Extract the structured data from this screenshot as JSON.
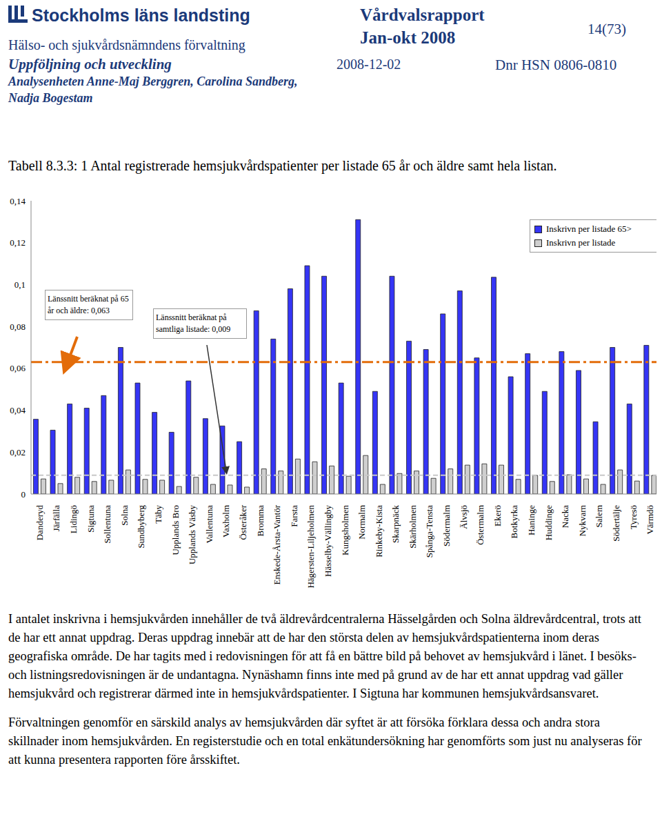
{
  "header": {
    "logo": "Stockholms läns landsting",
    "department": "Hälso- och sjukvårdsnämndens förvaltning",
    "unit": "Uppföljning och utveckling",
    "authors": "Analysenheten Anne-Maj Berggren, Carolina Sandberg, Nadja Bogestam",
    "report": "Vårdvalsrapport",
    "period": "Jan-okt 2008",
    "date": "2008-12-02",
    "page": "14(73)",
    "dnr": "Dnr HSN 0806-0810"
  },
  "caption": "Tabell 8.3.3: 1 Antal registrerade hemsjukvårdspatienter per listade 65 år och äldre samt hela listan.",
  "chart_data": {
    "type": "bar",
    "categories": [
      "Danderyd",
      "Järfälla",
      "Lidingö",
      "Sigtuna",
      "Sollentuna",
      "Solna",
      "Sundbyberg",
      "Täby",
      "Upplands Bro",
      "Upplands Väsby",
      "Vallentuna",
      "Vaxholm",
      "Österåker",
      "Bromma",
      "Enskede-Årsta-Vantör",
      "Farsta",
      "Hägersten-Liljeholmen",
      "Hässelby-Vällingby",
      "Kungsholmen",
      "Normalm",
      "Rinkeby-Kista",
      "Skarpnäck",
      "Skärholmen",
      "Spånga-Tensta",
      "Södermalm",
      "Älvsjö",
      "Östermalm",
      "Ekerö",
      "Botkyrka",
      "Haninge",
      "Huddinge",
      "Nacka",
      "Nykvarn",
      "Salem",
      "Södertälje",
      "Tyresö",
      "Värmdö"
    ],
    "series": [
      {
        "name": "Inskrivn per listade 65>",
        "color": "#3535f5",
        "values": [
          0.0357,
          0.0305,
          0.043,
          0.041,
          0.047,
          0.07,
          0.053,
          0.039,
          0.0295,
          0.054,
          0.036,
          0.0325,
          0.025,
          0.0875,
          0.074,
          0.098,
          0.109,
          0.104,
          0.053,
          0.131,
          0.049,
          0.104,
          0.073,
          0.069,
          0.086,
          0.097,
          0.065,
          0.1035,
          0.056,
          0.067,
          0.049,
          0.068,
          0.059,
          0.0345,
          0.07,
          0.043,
          0.071
        ]
      },
      {
        "name": "Inskrivn per listade",
        "color": "#cfcfcf",
        "values": [
          0.0072,
          0.005,
          0.008,
          0.006,
          0.0066,
          0.0115,
          0.007,
          0.0066,
          0.0036,
          0.008,
          0.0046,
          0.0043,
          0.0033,
          0.012,
          0.011,
          0.0167,
          0.0154,
          0.0134,
          0.0085,
          0.0184,
          0.0046,
          0.0098,
          0.011,
          0.0075,
          0.012,
          0.0138,
          0.0144,
          0.0138,
          0.007,
          0.0089,
          0.006,
          0.0092,
          0.0072,
          0.0046,
          0.0115,
          0.0062,
          0.0089
        ]
      }
    ],
    "ylim": [
      0,
      0.14
    ],
    "yticks": [
      0,
      {
        "value": 0.02,
        "label": "0,02"
      },
      {
        "value": 0.04,
        "label": "0,04"
      },
      {
        "value": 0.06,
        "label": "0,06"
      },
      {
        "value": 0.08,
        "label": "0,08"
      },
      {
        "value": 0.1,
        "label": "0,1"
      },
      {
        "value": 0.12,
        "label": "0,12"
      },
      {
        "value": 0.14,
        "label": "0,14"
      }
    ],
    "grid": false,
    "legend": "top-right",
    "annotations": [
      {
        "value": 0.063,
        "text": "Länssnitt beräknat på 65 år och äldre: 0,063",
        "color": "#e36c09",
        "line_style": "dashdot"
      },
      {
        "value": 0.009,
        "text": "Länssnitt beräknat på samtliga listade: 0,009",
        "color": "#c8c8c8",
        "line_style": "dashed"
      }
    ]
  },
  "paragraphs": [
    "I antalet inskrivna i hemsjukvården innehåller de två äldrevårdcentralerna Hässelgården och Solna äldrevårdcentral, trots att de har ett annat uppdrag. Deras uppdrag innebär att de har den största delen av hemsjukvårdspatienterna inom deras geografiska område. De har tagits med i redovisningen för att få en bättre bild på behovet av hemsjukvård i länet. I besöks- och listningsredovisningen är de undantagna. Nynäshamn finns inte med på grund av de har ett annat uppdrag vad gäller hemsjukvård och registrerar därmed inte in hemsjukvårdspatienter. I Sigtuna har kommunen hemsjukvårdsansvaret.",
    "Förvaltningen genomför en särskild analys av hemsjukvården där syftet är att försöka förklara dessa och andra stora skillnader inom hemsjukvården. En registerstudie och en total enkätundersökning har genomförts som just nu analyseras för att kunna presentera rapporten före årsskiftet."
  ]
}
